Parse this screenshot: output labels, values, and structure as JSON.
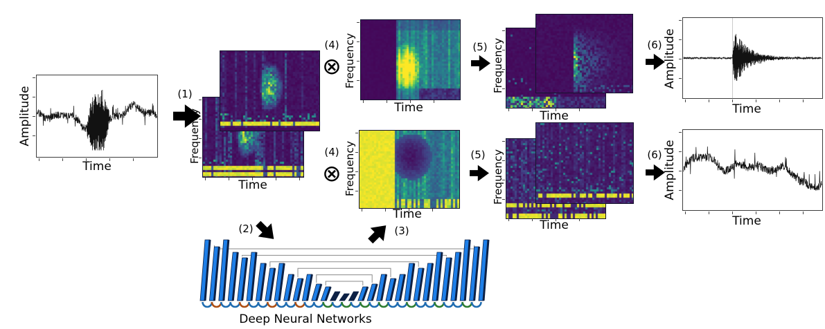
{
  "steps": {
    "s1": "(1)",
    "s2": "(2)",
    "s3": "(3)",
    "s4": "(4)",
    "s5": "(5)",
    "s6": "(6)"
  },
  "operators": {
    "elementwise_multiply": "⊗"
  },
  "panels": {
    "input_waveform": {
      "ylabel": "Amplitude",
      "xlabel": "Time"
    },
    "noisy_spectrograms": {
      "ylabel": "Frequency",
      "xlabel": "Time"
    },
    "signal_mask": {
      "ylabel": "Frequency",
      "xlabel": "Time"
    },
    "noise_mask": {
      "ylabel": "Frequency",
      "xlabel": "Time"
    },
    "masked_signal_spectrograms": {
      "ylabel": "Frequency",
      "xlabel": "Time"
    },
    "noise_spectrograms": {
      "ylabel": "Frequency",
      "xlabel": "Time"
    },
    "denoised_waveform": {
      "ylabel": "Amplitude",
      "xlabel": "Time"
    },
    "noise_waveform": {
      "ylabel": "Amplitude",
      "xlabel": "Time"
    }
  },
  "dnn": {
    "label": "Deep Neural Networks"
  },
  "colors": {
    "viridis": [
      "#440154",
      "#414487",
      "#2a788e",
      "#22a884",
      "#7ad151",
      "#fde725"
    ],
    "dnn_plate": "#1e7fe8",
    "dnn_edge": "#0d2145",
    "skip_line": "#8a8a8a",
    "arc_blue": "#1f6cb0",
    "arc_orange": "#ad4f14",
    "arc_green": "#2e7d32",
    "arrow": "#000000",
    "trace": "#111111",
    "guide_line": "#c8c8c8"
  }
}
